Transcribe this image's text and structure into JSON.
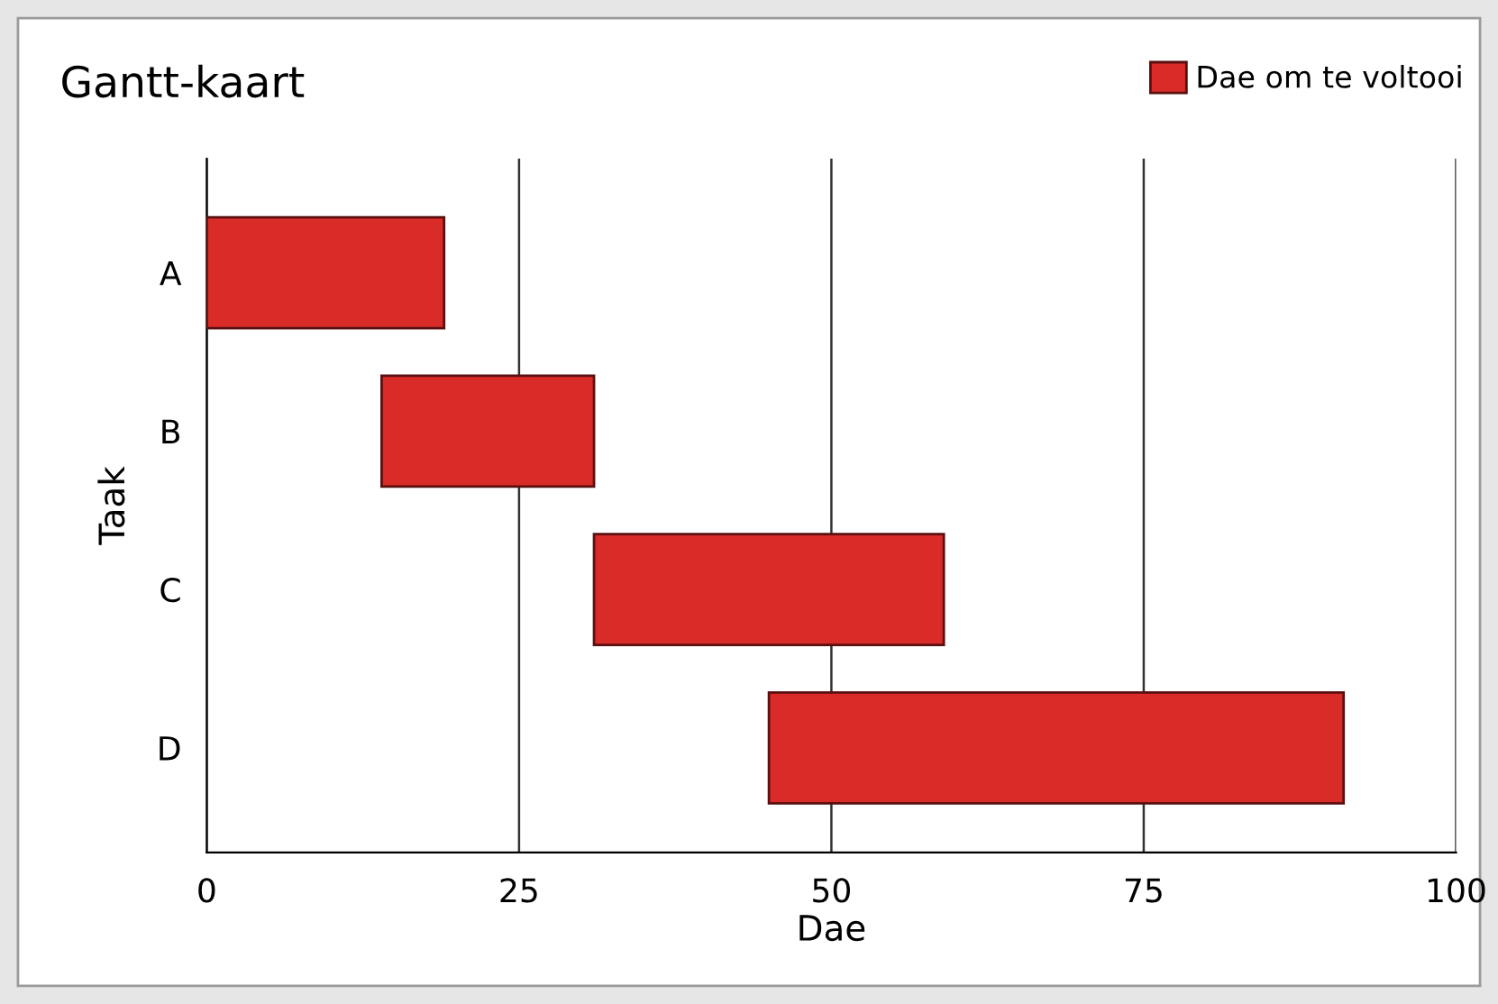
{
  "chart_data": {
    "type": "bar",
    "orientation": "horizontal",
    "title": "Gantt-kaart",
    "xlabel": "Dae",
    "ylabel": "Taak",
    "categories": [
      "A",
      "B",
      "C",
      "D"
    ],
    "series": [
      {
        "name": "Dae om te voltooi",
        "color": "#d92b27",
        "base": [
          0,
          14,
          31,
          45
        ],
        "values": [
          19,
          17,
          28,
          46
        ]
      }
    ],
    "xlim": [
      0,
      100
    ],
    "xticks": [
      0,
      25,
      50,
      75,
      100
    ],
    "grid": "x",
    "legend": "top right"
  }
}
